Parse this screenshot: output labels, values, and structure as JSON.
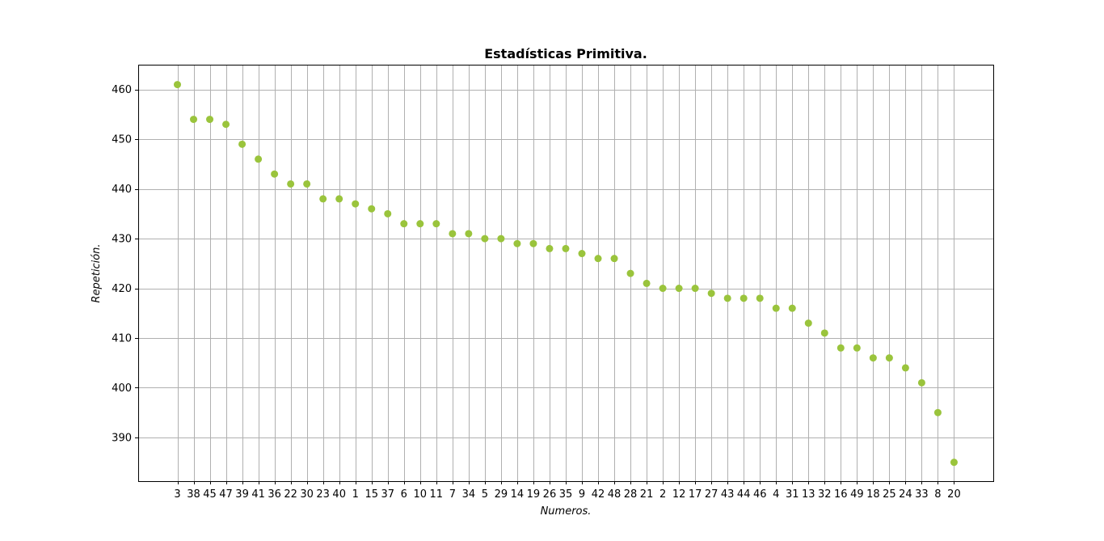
{
  "chart_data": {
    "type": "scatter",
    "title": "Estadísticas Primitiva.",
    "xlabel": "Numeros.",
    "ylabel": "Repetición.",
    "categories": [
      "3",
      "38",
      "45",
      "47",
      "39",
      "41",
      "36",
      "22",
      "30",
      "23",
      "40",
      "1",
      "15",
      "37",
      "6",
      "10",
      "11",
      "7",
      "34",
      "5",
      "29",
      "14",
      "19",
      "26",
      "35",
      "9",
      "42",
      "48",
      "28",
      "21",
      "2",
      "12",
      "17",
      "27",
      "43",
      "44",
      "46",
      "4",
      "31",
      "13",
      "32",
      "16",
      "49",
      "18",
      "25",
      "24",
      "33",
      "8",
      "20"
    ],
    "values": [
      461,
      454,
      454,
      453,
      449,
      446,
      443,
      441,
      441,
      438,
      438,
      437,
      436,
      435,
      433,
      433,
      433,
      431,
      431,
      430,
      430,
      429,
      429,
      428,
      428,
      427,
      426,
      426,
      423,
      421,
      420,
      420,
      420,
      419,
      418,
      418,
      418,
      416,
      416,
      413,
      411,
      408,
      408,
      406,
      406,
      404,
      401,
      395,
      385
    ],
    "yticks": [
      390,
      400,
      410,
      420,
      430,
      440,
      450,
      460
    ],
    "ylim": [
      381.2,
      465.0
    ],
    "grid": true,
    "marker_color": "#9ac43c"
  }
}
